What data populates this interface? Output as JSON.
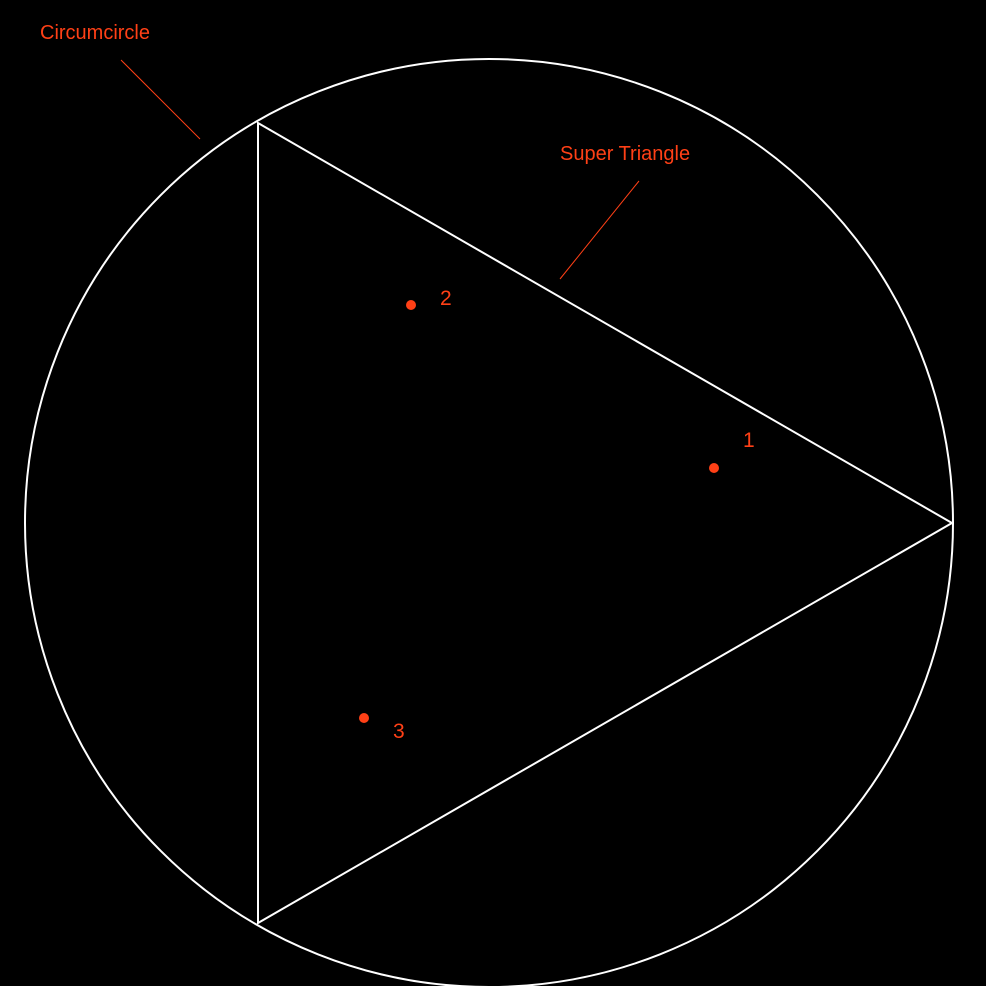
{
  "colors": {
    "background": "#000000",
    "shape_stroke": "#ffffff",
    "accent": "#ff4016"
  },
  "labels": {
    "circumcircle": "Circumcircle",
    "super_triangle": "Super Triangle"
  },
  "points": [
    {
      "id": "1"
    },
    {
      "id": "2"
    },
    {
      "id": "3"
    }
  ]
}
